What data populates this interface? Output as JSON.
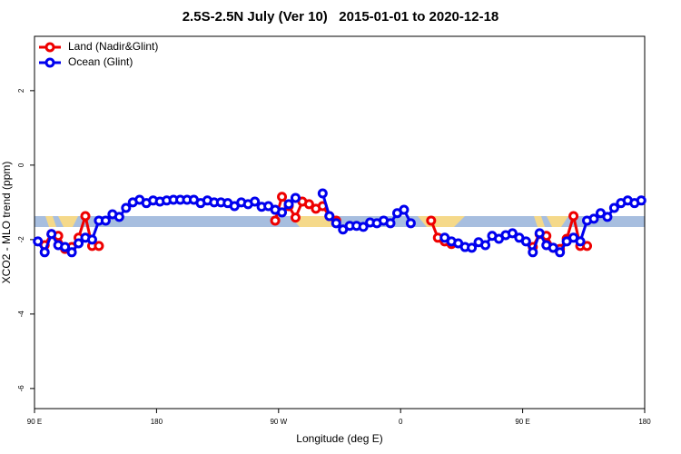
{
  "chart_data": {
    "type": "line",
    "title": "2.5S-2.5N July (Ver 10)   2015-01-01 to 2020-12-18",
    "x_label": "Longitude (deg E)",
    "y_label": "XCO2 - MLO trend (ppm)",
    "x": [
      92.5,
      97.5,
      102.5,
      107.5,
      112.5,
      117.5,
      122.5,
      127.5,
      132.5,
      137.5,
      142.5,
      147.5,
      152.5,
      157.5,
      162.5,
      167.5,
      172.5,
      177.5,
      182.5,
      187.5,
      192.5,
      197.5,
      202.5,
      207.5,
      212.5,
      217.5,
      222.5,
      227.5,
      232.5,
      237.5,
      242.5,
      247.5,
      252.5,
      257.5,
      262.5,
      267.5,
      272.5,
      277.5,
      282.5,
      287.5,
      292.5,
      297.5,
      302.5,
      307.5,
      312.5,
      317.5,
      322.5,
      327.5,
      332.5,
      337.5,
      342.5,
      347.5,
      352.5,
      357.5,
      362.5,
      367.5,
      372.5,
      377.5,
      382.5,
      387.5,
      392.5,
      397.5,
      402.5,
      407.5,
      412.5,
      417.5,
      422.5,
      427.5,
      432.5,
      437.5,
      442.5,
      447.5,
      452.5,
      457.5,
      462.5,
      467.5,
      472.5,
      477.5,
      482.5,
      487.5,
      492.5,
      497.5,
      502.5,
      507.5,
      512.5,
      517.5,
      522.5,
      527.5,
      532.5,
      537.5
    ],
    "series": [
      {
        "name": "Land (Nadir&Glint)",
        "color": "#ee0000",
        "values": [
          null,
          -2.15,
          -1.85,
          -1.9,
          -2.25,
          -2.2,
          -1.95,
          -1.37,
          -2.17,
          -2.17,
          null,
          null,
          null,
          null,
          null,
          null,
          null,
          null,
          null,
          null,
          null,
          null,
          null,
          null,
          null,
          null,
          null,
          null,
          null,
          null,
          null,
          null,
          null,
          null,
          null,
          -1.49,
          -0.85,
          -1.1,
          -1.41,
          -0.98,
          -1.05,
          -1.17,
          -1.1,
          -1.37,
          -1.49,
          null,
          null,
          null,
          null,
          null,
          null,
          null,
          null,
          null,
          null,
          null,
          null,
          null,
          -1.49,
          -1.95,
          -2.05,
          -2.12,
          null,
          null,
          null,
          null,
          null,
          null,
          null,
          null,
          null,
          null,
          null,
          -2.2,
          -1.85,
          -1.9,
          -2.22,
          -2.25,
          -1.98,
          -1.37,
          -2.17,
          -2.17,
          null,
          null,
          null,
          null,
          null,
          null,
          null,
          null
        ]
      },
      {
        "name": "Ocean (Glint)",
        "color": "#0000ee",
        "values": [
          -2.05,
          -2.34,
          -1.85,
          -2.15,
          -2.2,
          -2.34,
          -2.1,
          -1.95,
          -2.0,
          -1.49,
          -1.49,
          -1.32,
          -1.39,
          -1.15,
          -1.0,
          -0.93,
          -1.02,
          -0.95,
          -0.98,
          -0.95,
          -0.93,
          -0.93,
          -0.93,
          -0.93,
          -1.02,
          -0.95,
          -1.0,
          -1.0,
          -1.02,
          -1.1,
          -1.0,
          -1.05,
          -0.98,
          -1.12,
          -1.1,
          -1.2,
          -1.27,
          -1.05,
          -0.88,
          null,
          null,
          null,
          -0.76,
          -1.37,
          -1.56,
          -1.73,
          -1.63,
          -1.63,
          -1.66,
          -1.54,
          -1.56,
          -1.49,
          -1.56,
          -1.29,
          -1.2,
          -1.56,
          null,
          null,
          null,
          null,
          -1.95,
          -2.05,
          -2.1,
          -2.2,
          -2.22,
          -2.07,
          -2.15,
          -1.9,
          -1.98,
          -1.88,
          -1.83,
          -1.95,
          -2.05,
          -2.34,
          -1.83,
          -2.15,
          -2.22,
          -2.34,
          -2.05,
          -1.95,
          -2.05,
          -1.49,
          -1.44,
          -1.29,
          -1.39,
          -1.15,
          -1.02,
          -0.95,
          -1.02,
          -0.95
        ]
      }
    ],
    "xlim": [
      90,
      540
    ],
    "xticks": [
      {
        "value": 90,
        "label": "90 E"
      },
      180,
      {
        "value": 270,
        "label": "90 W"
      },
      {
        "value": 360,
        "label": "0"
      },
      {
        "value": 450,
        "label": "90 E"
      },
      {
        "value": 540,
        "label": "180"
      }
    ],
    "ylim": [
      -6.54,
      3.46
    ],
    "yticks": [
      -6,
      -4,
      -2,
      0,
      2
    ],
    "legend": "top-left"
  }
}
